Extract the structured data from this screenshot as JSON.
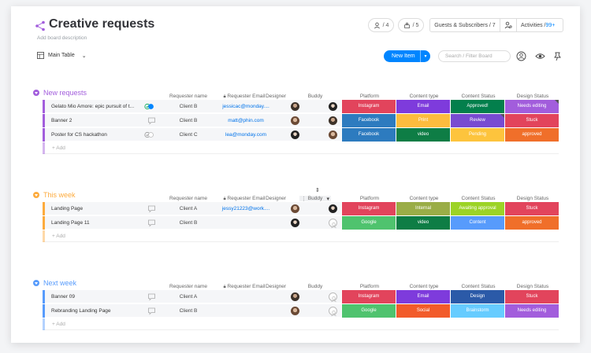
{
  "board": {
    "title": "Creative requests",
    "description": "Add board description",
    "people_count": "/ 4",
    "integrations_count": "/ 5",
    "guests": "Guests & Subscribers / 7",
    "activities_label": "Activities / ",
    "activities_count": "99+"
  },
  "toolbar": {
    "view_label": "Main Table",
    "new_item_label": "New Item",
    "search_placeholder": "Search / Filter Board"
  },
  "columns": {
    "requester_name": "Requester name",
    "requester_email": "Requester Email",
    "designer": "Designer",
    "buddy": "Buddy",
    "platform": "Platform",
    "content_type": "Content type",
    "content_status": "Content Status",
    "design_status": "Design Status"
  },
  "add_label": "+ Add",
  "groups": [
    {
      "title": "New requests",
      "color": "#a25ddc",
      "rows": [
        {
          "name": "Gelato Mio Amore: epic pursuit of t...",
          "client": "Client B",
          "email": "jessicac@monday....",
          "platform": "Instagram",
          "content_type": "Email",
          "content_status": "Approved!",
          "design_status": "Needs editing"
        },
        {
          "name": "Banner 2",
          "client": "Client B",
          "email": "matt@phin.com",
          "platform": "Facebook",
          "content_type": "Print",
          "content_status": "Review",
          "design_status": "Stuck"
        },
        {
          "name": "Poster for CS hackathon",
          "client": "Client C",
          "email": "lea@monday.com",
          "platform": "Facebook",
          "content_type": "video",
          "content_status": "Pending",
          "design_status": "approved"
        }
      ]
    },
    {
      "title": "This week",
      "color": "#fdab3d",
      "rows": [
        {
          "name": "Landing Page",
          "client": "Client A",
          "email": "jessy21223@work....",
          "platform": "Instagram",
          "content_type": "Internal",
          "content_status": "Awaiting approval",
          "design_status": "Stuck"
        },
        {
          "name": "Landing Page 11",
          "client": "Client B",
          "email": "",
          "platform": "Google",
          "content_type": "video",
          "content_status": "Content",
          "design_status": "approved"
        }
      ]
    },
    {
      "title": "Next week",
      "color": "#579bfc",
      "rows": [
        {
          "name": "Banner 09",
          "client": "Client A",
          "email": "",
          "platform": "Instagram",
          "content_type": "Email",
          "content_status": "Design",
          "design_status": "Stuck"
        },
        {
          "name": "Rebranding Landing Page",
          "client": "Client B",
          "email": "",
          "platform": "Google",
          "content_type": "Social",
          "content_status": "Brainstorm",
          "design_status": "Needs editing"
        }
      ]
    }
  ],
  "label_colors": {
    "Instagram": "#e2445c",
    "Facebook": "#2d7bbf",
    "Google": "#4fc36e",
    "Email": "#7e3bdc",
    "Print": "#fdbc3e",
    "video": "#0e7d45",
    "Internal": "#9aad47",
    "Social": "#f25b2a",
    "Approved!": "#037f4c",
    "Review": "#784bd1",
    "Pending": "#fdc43d",
    "Awaiting approval": "#9cd326",
    "Content": "#579bfc",
    "Design": "#2b5aa8",
    "Brainstorm": "#66ccff",
    "Needs editing": "#a25ddc",
    "Stuck": "#e2445c",
    "approved": "#f06f2a"
  }
}
